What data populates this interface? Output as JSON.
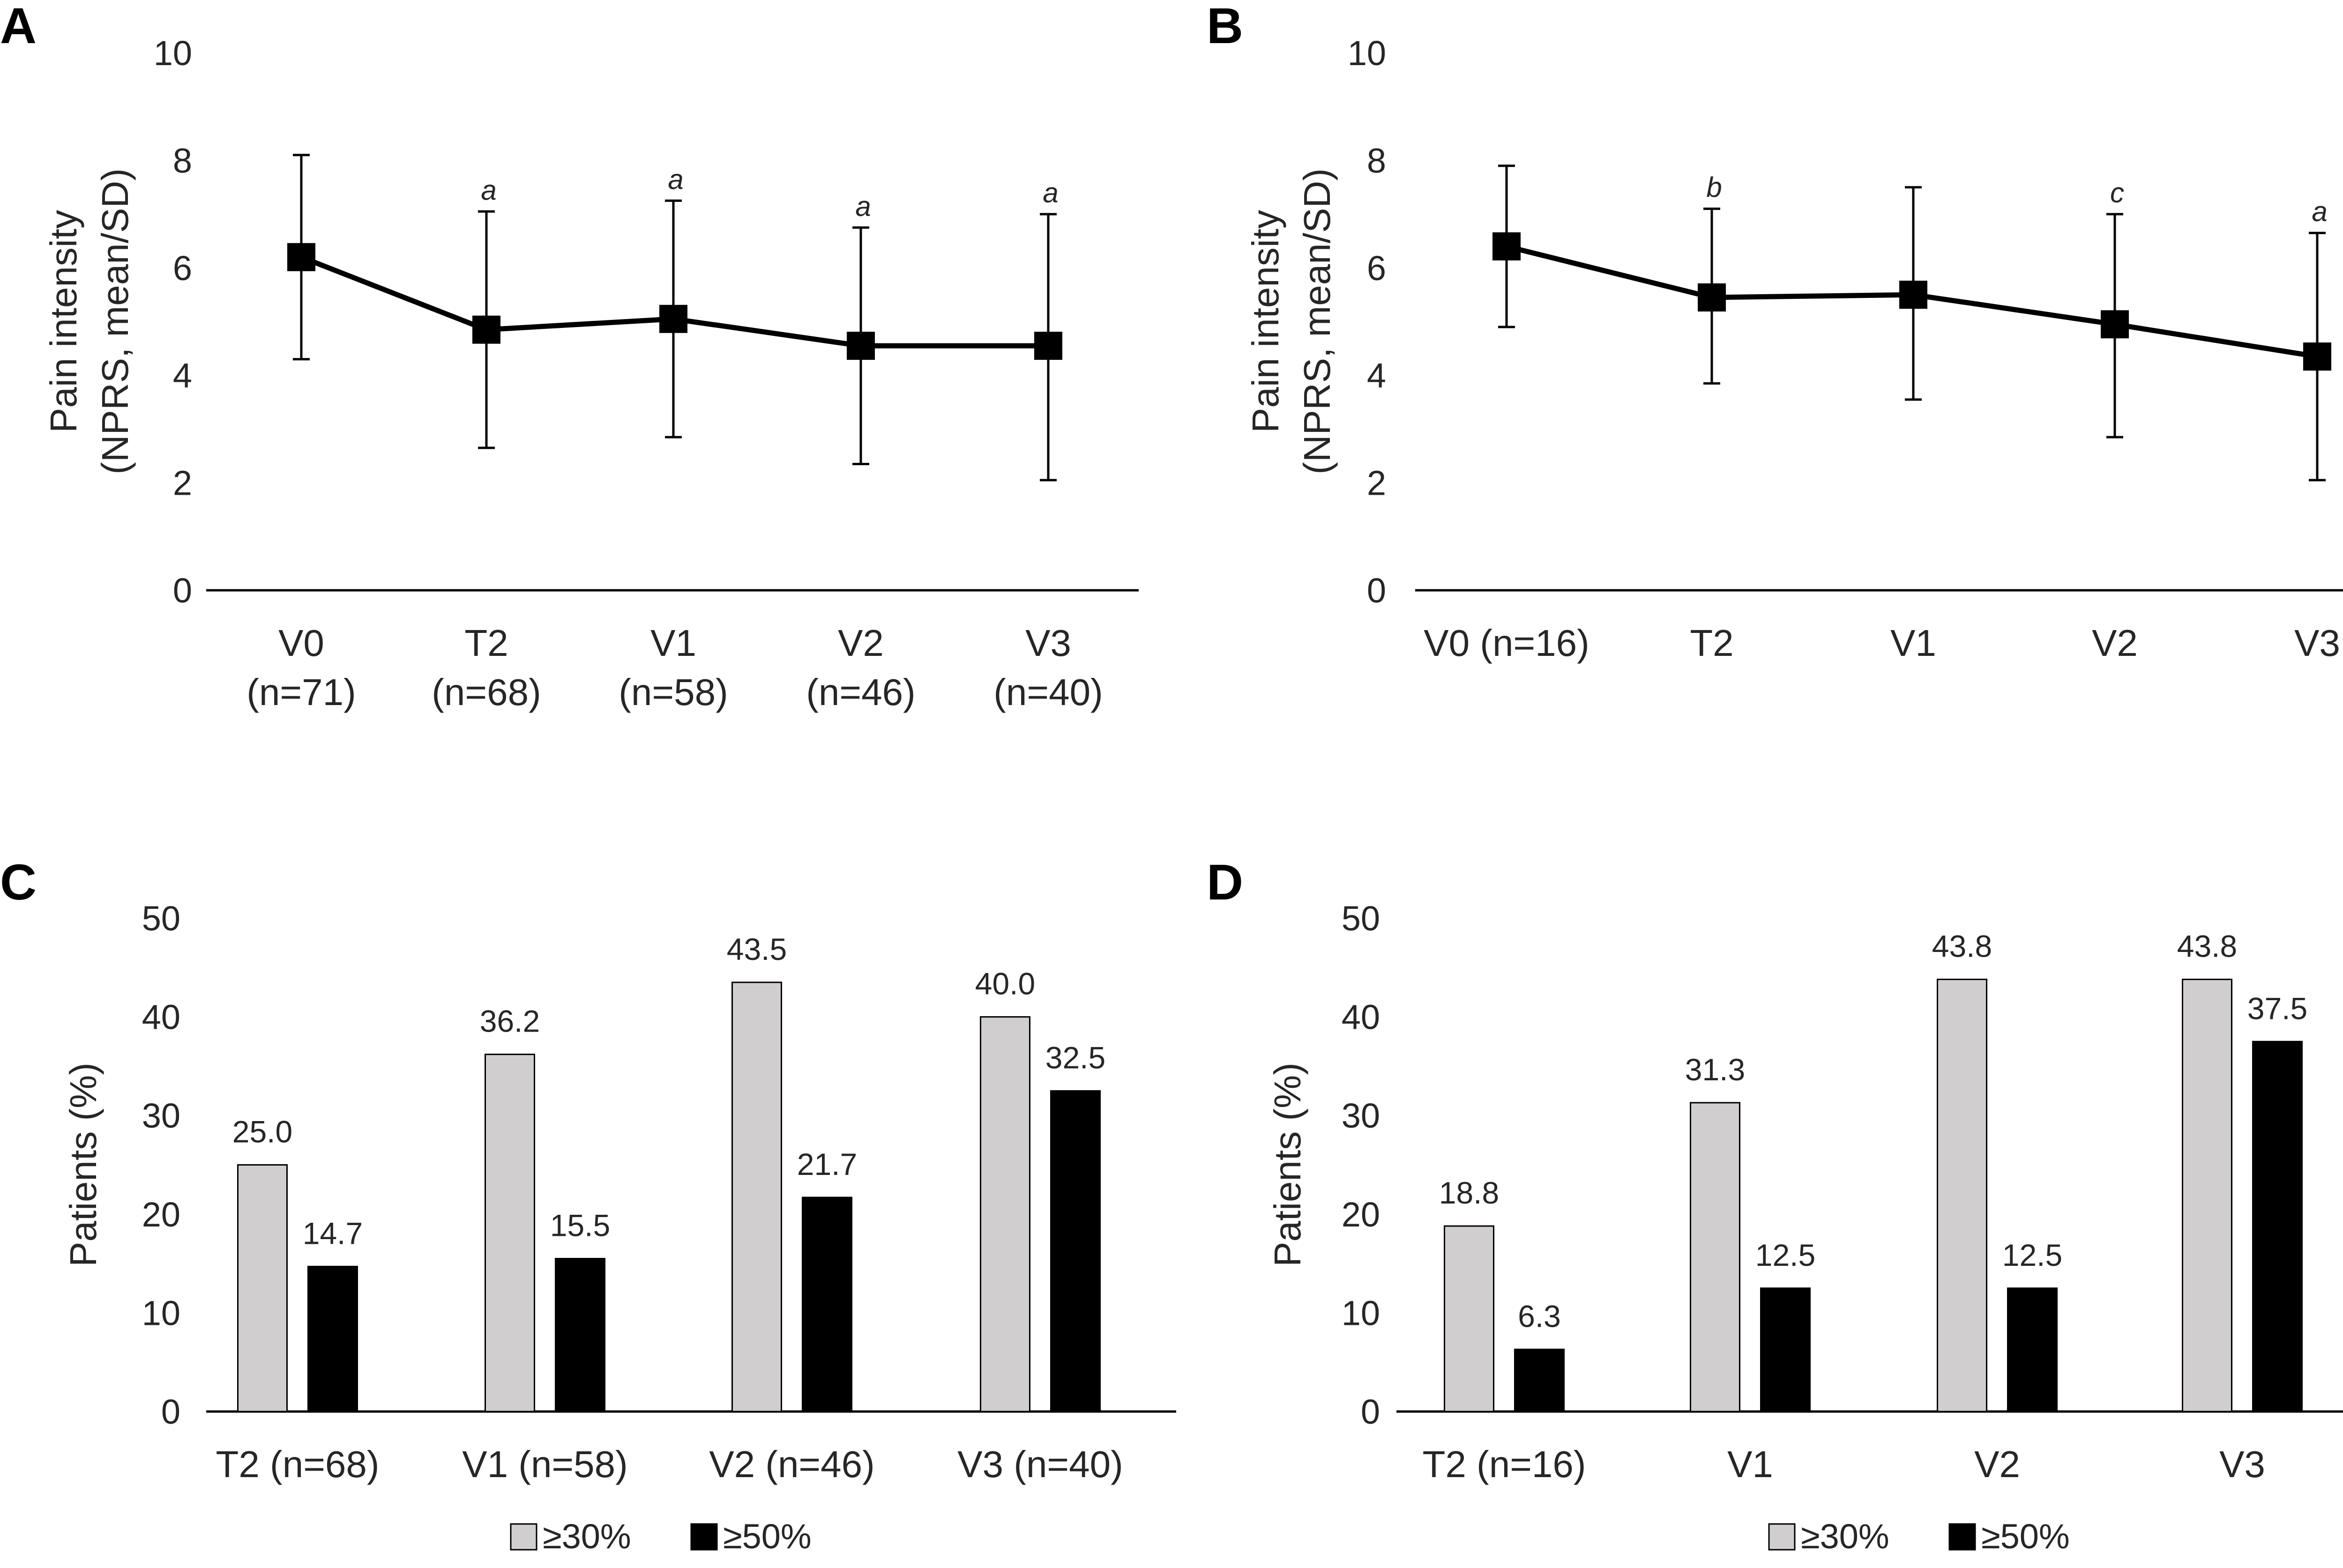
{
  "chart_data": [
    {
      "panel": "A",
      "type": "line",
      "categories": [
        "V0",
        "T2",
        "V1",
        "V2",
        "V3"
      ],
      "category_n": [
        "(n=71)",
        "(n=68)",
        "(n=58)",
        "(n=46)",
        "(n=40)"
      ],
      "values": [
        6.2,
        4.85,
        5.05,
        4.55,
        4.55
      ],
      "sd_low": [
        4.3,
        2.65,
        2.85,
        2.35,
        2.05
      ],
      "sd_high": [
        8.1,
        7.05,
        7.25,
        6.75,
        7.0
      ],
      "annotations": [
        "",
        "a",
        "a",
        "a",
        "a"
      ],
      "ylabel_line1": "Pain intensity",
      "ylabel_line2": "(NPRS, mean/SD)",
      "ylim": [
        0,
        10
      ],
      "yticks": [
        "0",
        "2",
        "4",
        "6",
        "8",
        "10"
      ]
    },
    {
      "panel": "B",
      "type": "line",
      "categories": [
        "V0  (n=16)",
        "T2",
        "V1",
        "V2",
        "V3"
      ],
      "values": [
        6.4,
        5.45,
        5.5,
        4.95,
        4.35
      ],
      "sd_low": [
        4.9,
        3.85,
        3.55,
        2.85,
        2.05
      ],
      "sd_high": [
        7.9,
        7.1,
        7.5,
        7.0,
        6.65
      ],
      "annotations": [
        "",
        "b",
        "",
        "c",
        "a"
      ],
      "ylabel_line1": "Pain intensity",
      "ylabel_line2": "(NPRS, mean/SD)",
      "ylim": [
        0,
        10
      ],
      "yticks": [
        "0",
        "2",
        "4",
        "6",
        "8",
        "10"
      ]
    },
    {
      "panel": "C",
      "type": "bar",
      "categories": [
        "T2  (n=68)",
        "V1  (n=58)",
        "V2  (n=46)",
        "V3  (n=40)"
      ],
      "series": [
        {
          "name": "≥30%",
          "color": "#d0cece",
          "values": [
            25.0,
            36.2,
            43.5,
            40.0
          ],
          "labels": [
            "25.0",
            "36.2",
            "43.5",
            "40.0"
          ]
        },
        {
          "name": "≥50%",
          "color": "#000000",
          "values": [
            14.7,
            15.5,
            21.7,
            32.5
          ],
          "labels": [
            "14.7",
            "15.5",
            "21.7",
            "32.5"
          ]
        }
      ],
      "ylabel": "Patients (%)",
      "ylim": [
        0,
        50
      ],
      "yticks": [
        "0",
        "10",
        "20",
        "30",
        "40",
        "50"
      ],
      "legend": [
        "≥30%",
        "≥50%"
      ]
    },
    {
      "panel": "D",
      "type": "bar",
      "categories": [
        "T2  (n=16)",
        "V1",
        "V2",
        "V3"
      ],
      "series": [
        {
          "name": "≥30%",
          "color": "#d0cece",
          "values": [
            18.8,
            31.3,
            43.8,
            43.8
          ],
          "labels": [
            "18.8",
            "31.3",
            "43.8",
            "43.8"
          ]
        },
        {
          "name": "≥50%",
          "color": "#000000",
          "values": [
            6.3,
            12.5,
            12.5,
            37.5
          ],
          "labels": [
            "6.3",
            "12.5",
            "12.5",
            "37.5"
          ]
        }
      ],
      "ylabel": "Patients (%)",
      "ylim": [
        0,
        50
      ],
      "yticks": [
        "0",
        "10",
        "20",
        "30",
        "40",
        "50"
      ],
      "legend": [
        "≥30%",
        "≥50%"
      ]
    }
  ]
}
